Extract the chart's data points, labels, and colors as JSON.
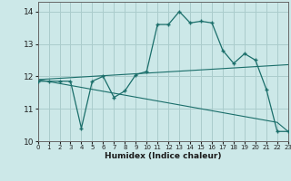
{
  "xlabel": "Humidex (Indice chaleur)",
  "bg_color": "#cce8e8",
  "grid_color": "#aacccc",
  "line_color": "#1a6e6a",
  "x": [
    0,
    1,
    2,
    3,
    4,
    5,
    6,
    7,
    8,
    9,
    10,
    11,
    12,
    13,
    14,
    15,
    16,
    17,
    18,
    19,
    20,
    21,
    22,
    23
  ],
  "y_main": [
    11.85,
    11.85,
    11.85,
    11.85,
    10.4,
    11.85,
    12.0,
    11.35,
    11.55,
    12.05,
    12.15,
    13.6,
    13.6,
    14.0,
    13.65,
    13.7,
    13.65,
    12.8,
    12.4,
    12.7,
    12.5,
    11.6,
    10.3,
    10.3
  ],
  "y_trend_up": [
    11.9,
    11.92,
    11.94,
    11.96,
    11.98,
    12.0,
    12.02,
    12.04,
    12.06,
    12.08,
    12.1,
    12.12,
    12.14,
    12.16,
    12.18,
    12.2,
    12.22,
    12.24,
    12.26,
    12.28,
    12.3,
    12.32,
    12.34,
    12.36
  ],
  "y_trend_down": [
    11.9,
    11.84,
    11.78,
    11.72,
    11.66,
    11.6,
    11.54,
    11.48,
    11.42,
    11.36,
    11.3,
    11.24,
    11.18,
    11.12,
    11.06,
    11.0,
    10.94,
    10.88,
    10.82,
    10.76,
    10.7,
    10.64,
    10.58,
    10.3
  ],
  "xlim": [
    0,
    23
  ],
  "ylim": [
    10.0,
    14.3
  ],
  "yticks": [
    10,
    11,
    12,
    13,
    14
  ],
  "xticks": [
    0,
    1,
    2,
    3,
    4,
    5,
    6,
    7,
    8,
    9,
    10,
    11,
    12,
    13,
    14,
    15,
    16,
    17,
    18,
    19,
    20,
    21,
    22,
    23
  ]
}
